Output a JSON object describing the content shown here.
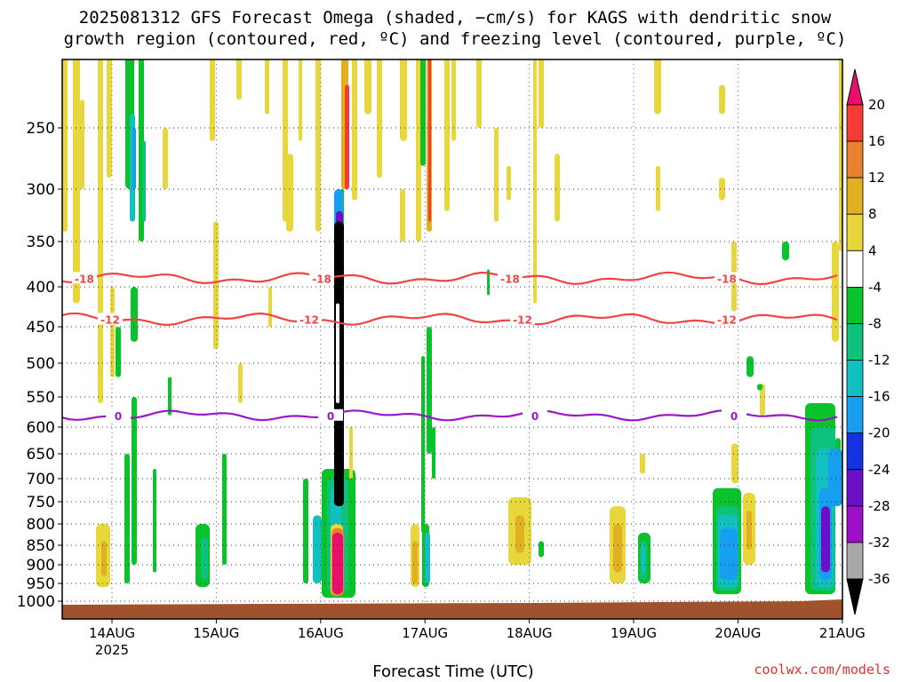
{
  "title_line1": "2025081312 GFS Forecast Omega (shaded, −cm/s) for KAGS with dendritic snow",
  "title_line2": "growth region (contoured, red, ºC) and freezing level (contoured, purple, ºC)",
  "credit": "coolwx.com/models",
  "chart_data": {
    "type": "heatmap",
    "xlabel": "Forecast Time (UTC)",
    "ylabel": "",
    "x_ticks": [
      "14AUG",
      "15AUG",
      "16AUG",
      "17AUG",
      "18AUG",
      "19AUG",
      "20AUG",
      "21AUG"
    ],
    "x_year_label": "2025",
    "x_range": [
      "2025-08-13 12Z",
      "2025-08-21 00Z"
    ],
    "y_axis": "pressure (hPa), reversed",
    "y_ticks": [
      250,
      300,
      350,
      400,
      450,
      500,
      550,
      600,
      650,
      700,
      750,
      800,
      850,
      900,
      950,
      1000
    ],
    "y_range": [
      200,
      1010
    ],
    "grid": true,
    "colorbar": {
      "ticks": [
        20,
        16,
        12,
        8,
        4,
        -4,
        -8,
        -12,
        -16,
        -20,
        -24,
        -28,
        -32,
        -36
      ],
      "colors": [
        "#e8106c",
        "#f53b33",
        "#e8822e",
        "#e0b020",
        "#e8d73c",
        "#ffffff",
        "#0ac22a",
        "#0dc27a",
        "#11c1c0",
        "#169fee",
        "#1432e0",
        "#6a10c8",
        "#9c10c8",
        "#a8a8a8",
        "#000000"
      ]
    },
    "contours": [
      {
        "label": "-18",
        "color": "#f04444",
        "approx_level_hpa": 390
      },
      {
        "label": "-12",
        "color": "#f04444",
        "approx_level_hpa": 440
      },
      {
        "label": "0",
        "color": "#9a18c8",
        "approx_level_hpa": 580
      }
    ],
    "contour_label_text": [
      "-18",
      "-18",
      "-18",
      "-18",
      "-12",
      "-12",
      "-12",
      "-12",
      "0",
      "0",
      "0",
      "0"
    ],
    "omega_features": [
      {
        "time": "16AUG 03Z",
        "pressure_top": 330,
        "pressure_bottom": 780,
        "value": -36,
        "note": "strong ascent core"
      },
      {
        "time": "16AUG 03Z",
        "pressure_top": 800,
        "pressure_bottom": 980,
        "value": 20,
        "note": "strong descent"
      },
      {
        "time": "19AUG 21Z",
        "pressure_top": 760,
        "pressure_bottom": 970,
        "value": -20
      },
      {
        "time": "20AUG 21Z",
        "pressure_top": 720,
        "pressure_bottom": 960,
        "value": -28
      }
    ],
    "surface_fill_color": "#a0522d"
  }
}
